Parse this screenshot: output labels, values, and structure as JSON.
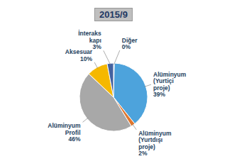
{
  "chart_data": {
    "type": "pie",
    "title": "2015/9",
    "categories": [
      "Diğer",
      "Alüminyum\n(Yurtiçi\nproje)",
      "Alüminyum\n(Yurtdışı\nproje)",
      "Alüminyum\nProfil",
      "Aksesuar",
      "İnteraks\nkapı"
    ],
    "values": [
      0.4,
      39,
      2,
      46,
      10,
      3
    ],
    "value_labels": [
      "0%",
      "39%",
      "2%",
      "46%",
      "10%",
      "3%"
    ],
    "colors": [
      "#5B9BD5",
      "#4DA3DC",
      "#E07830",
      "#A8A8A8",
      "#F5B800",
      "#4462A0"
    ],
    "data_labels": true
  }
}
